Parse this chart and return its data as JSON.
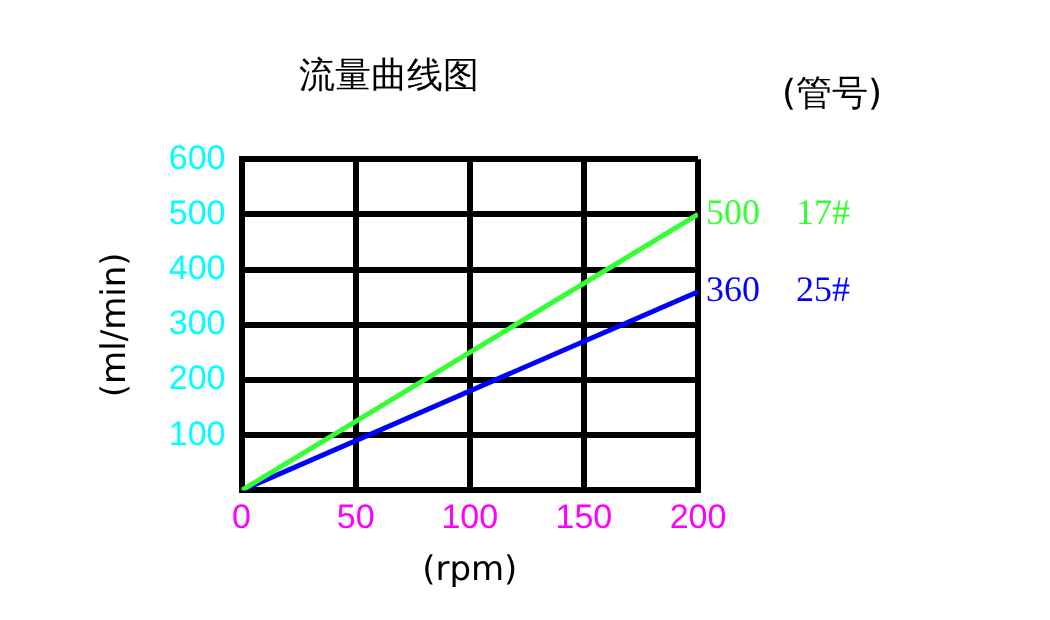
{
  "chart_data": {
    "type": "line",
    "title": "流量曲线图",
    "legend_title": "(管号)",
    "xlabel": "(rpm)",
    "ylabel": "(ml/min)",
    "x": [
      0,
      200
    ],
    "series": [
      {
        "name": "17#",
        "color": "#33ff33",
        "values": [
          0,
          500
        ],
        "value_labels": [
          null,
          "500"
        ]
      },
      {
        "name": "25#",
        "color": "#0000ff",
        "values": [
          0,
          360
        ],
        "value_labels": [
          null,
          "360"
        ]
      }
    ],
    "xlim": [
      0,
      200
    ],
    "xticks": [
      0,
      50,
      100,
      150,
      200
    ],
    "ylim": [
      0,
      600
    ],
    "yticks": [
      {
        "value": 0,
        "label": null
      },
      100,
      200,
      300,
      400,
      500,
      600
    ],
    "grid": true,
    "legend": false,
    "marker": "none",
    "line_style": "solid"
  }
}
